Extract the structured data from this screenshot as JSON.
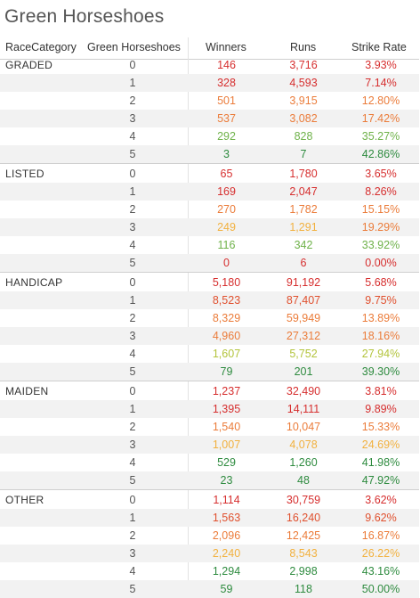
{
  "title": "Green Horseshoes",
  "columns": {
    "race_category": "RaceCategory",
    "green_horseshoes": "Green Horseshoes",
    "winners": "Winners",
    "runs": "Runs",
    "strike_rate": "Strike Rate"
  },
  "colors": {
    "red": "#d62e2e",
    "red_orange": "#e0502e",
    "orange": "#eb7c3a",
    "gold": "#f2b13f",
    "yellow_green": "#b3c43c",
    "light_green": "#6fb24a",
    "green": "#2e8b3f",
    "row_alt": "#f2f2f2",
    "divider": "#cfcfcf"
  },
  "groups": [
    {
      "category": "GRADED",
      "rows": [
        {
          "hs": "0",
          "winners": "146",
          "runs": "3,716",
          "strike": "3.93%",
          "wc": "red",
          "rc": "red",
          "sc": "red"
        },
        {
          "hs": "1",
          "winners": "328",
          "runs": "4,593",
          "strike": "7.14%",
          "wc": "red",
          "rc": "red",
          "sc": "red"
        },
        {
          "hs": "2",
          "winners": "501",
          "runs": "3,915",
          "strike": "12.80%",
          "wc": "orange",
          "rc": "orange",
          "sc": "orange"
        },
        {
          "hs": "3",
          "winners": "537",
          "runs": "3,082",
          "strike": "17.42%",
          "wc": "orange",
          "rc": "orange",
          "sc": "orange"
        },
        {
          "hs": "4",
          "winners": "292",
          "runs": "828",
          "strike": "35.27%",
          "wc": "light_green",
          "rc": "light_green",
          "sc": "light_green"
        },
        {
          "hs": "5",
          "winners": "3",
          "runs": "7",
          "strike": "42.86%",
          "wc": "green",
          "rc": "green",
          "sc": "green"
        }
      ]
    },
    {
      "category": "LISTED",
      "rows": [
        {
          "hs": "0",
          "winners": "65",
          "runs": "1,780",
          "strike": "3.65%",
          "wc": "red",
          "rc": "red",
          "sc": "red"
        },
        {
          "hs": "1",
          "winners": "169",
          "runs": "2,047",
          "strike": "8.26%",
          "wc": "red",
          "rc": "red",
          "sc": "red"
        },
        {
          "hs": "2",
          "winners": "270",
          "runs": "1,782",
          "strike": "15.15%",
          "wc": "orange",
          "rc": "orange",
          "sc": "orange"
        },
        {
          "hs": "3",
          "winners": "249",
          "runs": "1,291",
          "strike": "19.29%",
          "wc": "gold",
          "rc": "gold",
          "sc": "orange"
        },
        {
          "hs": "4",
          "winners": "116",
          "runs": "342",
          "strike": "33.92%",
          "wc": "light_green",
          "rc": "light_green",
          "sc": "light_green"
        },
        {
          "hs": "5",
          "winners": "0",
          "runs": "6",
          "strike": "0.00%",
          "wc": "red",
          "rc": "red",
          "sc": "red"
        }
      ]
    },
    {
      "category": "HANDICAP",
      "rows": [
        {
          "hs": "0",
          "winners": "5,180",
          "runs": "91,192",
          "strike": "5.68%",
          "wc": "red",
          "rc": "red",
          "sc": "red"
        },
        {
          "hs": "1",
          "winners": "8,523",
          "runs": "87,407",
          "strike": "9.75%",
          "wc": "red_orange",
          "rc": "red_orange",
          "sc": "red_orange"
        },
        {
          "hs": "2",
          "winners": "8,329",
          "runs": "59,949",
          "strike": "13.89%",
          "wc": "orange",
          "rc": "orange",
          "sc": "orange"
        },
        {
          "hs": "3",
          "winners": "4,960",
          "runs": "27,312",
          "strike": "18.16%",
          "wc": "orange",
          "rc": "orange",
          "sc": "orange"
        },
        {
          "hs": "4",
          "winners": "1,607",
          "runs": "5,752",
          "strike": "27.94%",
          "wc": "yellow_green",
          "rc": "yellow_green",
          "sc": "yellow_green"
        },
        {
          "hs": "5",
          "winners": "79",
          "runs": "201",
          "strike": "39.30%",
          "wc": "green",
          "rc": "green",
          "sc": "green"
        }
      ]
    },
    {
      "category": "MAIDEN",
      "rows": [
        {
          "hs": "0",
          "winners": "1,237",
          "runs": "32,490",
          "strike": "3.81%",
          "wc": "red",
          "rc": "red",
          "sc": "red"
        },
        {
          "hs": "1",
          "winners": "1,395",
          "runs": "14,111",
          "strike": "9.89%",
          "wc": "red",
          "rc": "red",
          "sc": "red"
        },
        {
          "hs": "2",
          "winners": "1,540",
          "runs": "10,047",
          "strike": "15.33%",
          "wc": "orange",
          "rc": "orange",
          "sc": "orange"
        },
        {
          "hs": "3",
          "winners": "1,007",
          "runs": "4,078",
          "strike": "24.69%",
          "wc": "gold",
          "rc": "gold",
          "sc": "gold"
        },
        {
          "hs": "4",
          "winners": "529",
          "runs": "1,260",
          "strike": "41.98%",
          "wc": "green",
          "rc": "green",
          "sc": "green"
        },
        {
          "hs": "5",
          "winners": "23",
          "runs": "48",
          "strike": "47.92%",
          "wc": "green",
          "rc": "green",
          "sc": "green"
        }
      ]
    },
    {
      "category": "OTHER",
      "rows": [
        {
          "hs": "0",
          "winners": "1,114",
          "runs": "30,759",
          "strike": "3.62%",
          "wc": "red",
          "rc": "red",
          "sc": "red"
        },
        {
          "hs": "1",
          "winners": "1,563",
          "runs": "16,240",
          "strike": "9.62%",
          "wc": "red_orange",
          "rc": "red_orange",
          "sc": "red_orange"
        },
        {
          "hs": "2",
          "winners": "2,096",
          "runs": "12,425",
          "strike": "16.87%",
          "wc": "orange",
          "rc": "orange",
          "sc": "orange"
        },
        {
          "hs": "3",
          "winners": "2,240",
          "runs": "8,543",
          "strike": "26.22%",
          "wc": "gold",
          "rc": "gold",
          "sc": "gold"
        },
        {
          "hs": "4",
          "winners": "1,294",
          "runs": "2,998",
          "strike": "43.16%",
          "wc": "green",
          "rc": "green",
          "sc": "green"
        },
        {
          "hs": "5",
          "winners": "59",
          "runs": "118",
          "strike": "50.00%",
          "wc": "green",
          "rc": "green",
          "sc": "green"
        }
      ]
    }
  ]
}
